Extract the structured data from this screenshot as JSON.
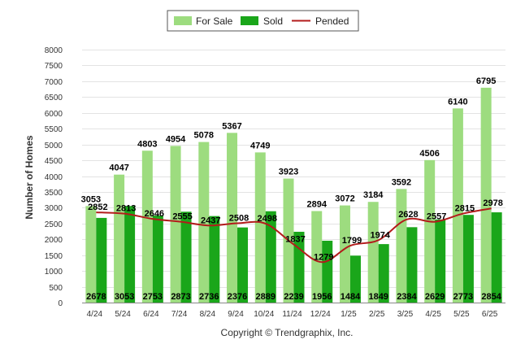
{
  "chart_data": {
    "type": "bar",
    "categories": [
      "4/24",
      "5/24",
      "6/24",
      "7/24",
      "8/24",
      "9/24",
      "10/24",
      "11/24",
      "12/24",
      "1/25",
      "2/25",
      "3/25",
      "4/25",
      "5/25",
      "6/25"
    ],
    "series": [
      {
        "name": "For Sale",
        "type": "bar",
        "color": "#9ddc7f",
        "values": [
          3053,
          4047,
          4803,
          4954,
          5078,
          5367,
          4749,
          3923,
          2894,
          3072,
          3184,
          3592,
          4506,
          6140,
          6795
        ]
      },
      {
        "name": "Sold",
        "type": "bar",
        "color": "#1aa61a",
        "values": [
          2678,
          3053,
          2753,
          2873,
          2736,
          2376,
          2889,
          2239,
          1956,
          1484,
          1849,
          2384,
          2629,
          2773,
          2854
        ]
      },
      {
        "name": "Pended",
        "type": "line",
        "color": "#b31b1b",
        "values": [
          2852,
          2813,
          2646,
          2555,
          2437,
          2508,
          2498,
          1837,
          1279,
          1799,
          1974,
          2628,
          2557,
          2815,
          2978
        ]
      }
    ],
    "ylabel": "Number of Homes",
    "xlabel": "",
    "ylim": [
      0,
      8000
    ],
    "yticks": [
      0,
      500,
      1000,
      1500,
      2000,
      2500,
      3000,
      3500,
      4000,
      4500,
      5000,
      5500,
      6000,
      6500,
      7000,
      7500,
      8000
    ],
    "grid": true,
    "legend_position": "top-center"
  },
  "legend": {
    "for_sale": "For Sale",
    "sold": "Sold",
    "pended": "Pended"
  },
  "footer": {
    "copyright": "Copyright © Trendgraphix, Inc."
  }
}
